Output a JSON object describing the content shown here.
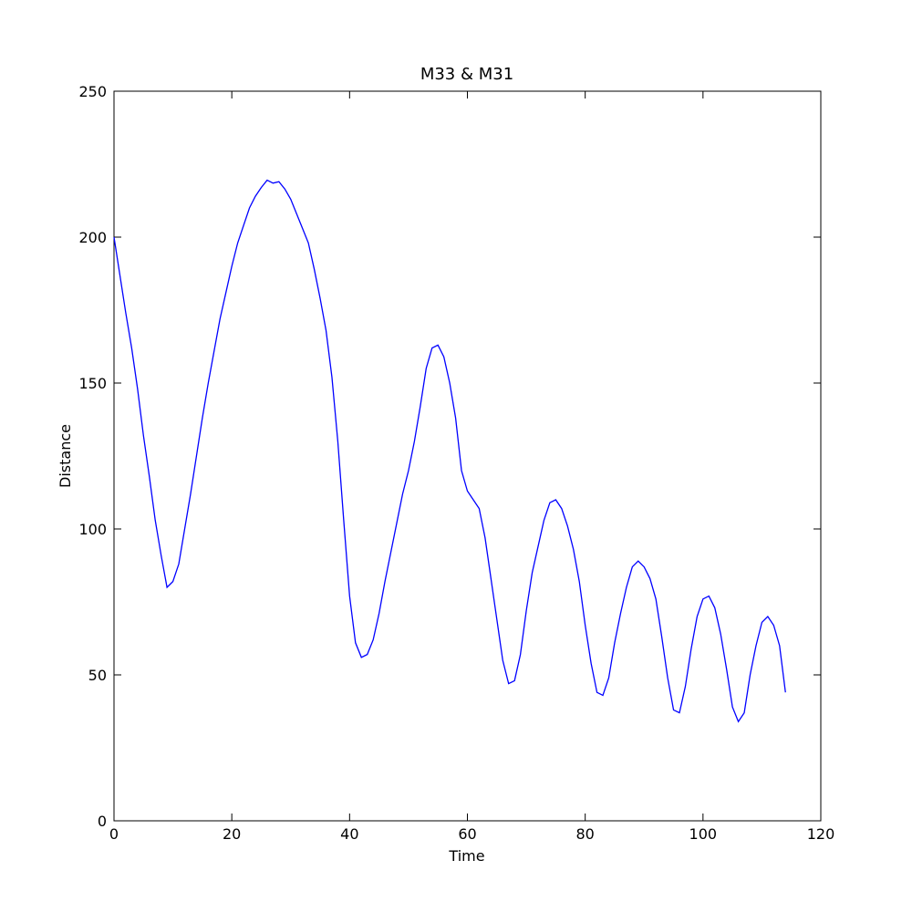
{
  "chart_data": {
    "type": "line",
    "title": "M33 & M31",
    "xlabel": "Time",
    "ylabel": "Distance",
    "x": [
      0,
      1,
      2,
      3,
      4,
      5,
      6,
      7,
      8,
      9,
      10,
      11,
      12,
      13,
      14,
      15,
      16,
      17,
      18,
      19,
      20,
      21,
      22,
      23,
      24,
      25,
      26,
      27,
      28,
      29,
      30,
      31,
      32,
      33,
      34,
      35,
      36,
      37,
      38,
      39,
      40,
      41,
      42,
      43,
      44,
      45,
      46,
      47,
      48,
      49,
      50,
      51,
      52,
      53,
      54,
      55,
      56,
      57,
      58,
      59,
      60,
      61,
      62,
      63,
      64,
      65,
      66,
      67,
      68,
      69,
      70,
      71,
      72,
      73,
      74,
      75,
      76,
      77,
      78,
      79,
      80,
      81,
      82,
      83,
      84,
      85,
      86,
      87,
      88,
      89,
      90,
      91,
      92,
      93,
      94,
      95,
      96,
      97,
      98,
      99,
      100,
      101,
      102,
      103,
      104,
      105,
      106,
      107,
      108,
      109,
      110,
      111,
      112,
      113,
      114
    ],
    "series": [
      {
        "color": "#0000ff",
        "values": [
          200,
          187,
          174,
          162,
          148,
          132,
          118,
          103,
          91,
          80,
          82,
          88,
          100,
          112,
          125,
          138,
          150,
          161,
          172,
          181,
          190,
          198,
          204,
          210,
          214,
          217,
          219.5,
          218.5,
          219,
          216.5,
          213,
          208,
          203,
          198,
          189,
          179,
          168,
          152,
          130,
          103,
          77,
          61,
          56,
          57,
          62,
          71,
          82,
          92,
          102,
          112,
          120,
          130,
          142,
          155,
          162,
          163,
          159,
          150,
          138,
          120,
          113,
          110,
          107,
          97,
          83,
          69,
          55,
          47,
          48,
          57,
          72,
          85,
          94,
          103,
          109,
          110,
          107,
          101,
          93,
          82,
          67,
          54,
          44,
          43,
          49,
          61,
          71,
          80,
          87,
          89,
          87,
          83,
          76,
          63,
          49,
          38,
          37,
          46,
          59,
          70,
          76,
          77,
          73,
          64,
          52,
          39,
          34,
          37,
          50,
          60,
          68,
          70,
          67,
          60,
          44
        ]
      }
    ],
    "xlim": [
      0,
      120
    ],
    "xticks": [
      0,
      20,
      40,
      60,
      80,
      100,
      120
    ],
    "ylim": [
      0,
      250
    ],
    "yticks": [
      0,
      50,
      100,
      150,
      200,
      250
    ]
  }
}
